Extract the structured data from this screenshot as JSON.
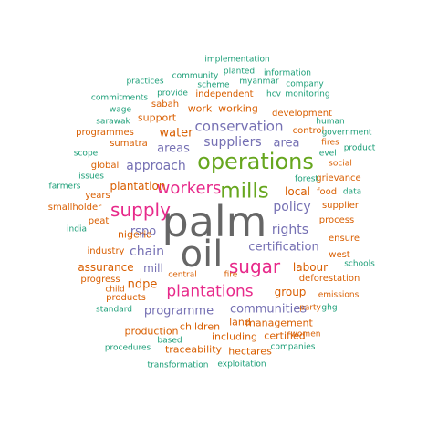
{
  "palette": {
    "darkgray": "#666666",
    "magenta": "#e7298a",
    "green": "#66a61e",
    "purple": "#7570b3",
    "orange": "#d95f02",
    "teal": "#1b9e77"
  },
  "words": [
    {
      "text": "palm",
      "color": "darkgray"
    },
    {
      "text": "oil",
      "color": "darkgray"
    },
    {
      "text": "operations",
      "color": "green"
    },
    {
      "text": "mills",
      "color": "green"
    },
    {
      "text": "sugar",
      "color": "magenta"
    },
    {
      "text": "supply",
      "color": "magenta"
    },
    {
      "text": "workers",
      "color": "magenta"
    },
    {
      "text": "plantations",
      "color": "magenta"
    },
    {
      "text": "conservation",
      "color": "purple"
    },
    {
      "text": "suppliers",
      "color": "purple"
    },
    {
      "text": "area",
      "color": "purple"
    },
    {
      "text": "areas",
      "color": "purple"
    },
    {
      "text": "approach",
      "color": "purple"
    },
    {
      "text": "water",
      "color": "orange"
    },
    {
      "text": "policy",
      "color": "purple"
    },
    {
      "text": "rights",
      "color": "purple"
    },
    {
      "text": "local",
      "color": "orange"
    },
    {
      "text": "certification",
      "color": "purple"
    },
    {
      "text": "chain",
      "color": "purple"
    },
    {
      "text": "rspo",
      "color": "purple"
    },
    {
      "text": "mill",
      "color": "purple"
    },
    {
      "text": "ndpe",
      "color": "orange"
    },
    {
      "text": "programme",
      "color": "purple"
    },
    {
      "text": "communities",
      "color": "purple"
    },
    {
      "text": "labour",
      "color": "orange"
    },
    {
      "text": "group",
      "color": "orange"
    },
    {
      "text": "plantation",
      "color": "orange"
    },
    {
      "text": "nigeria",
      "color": "orange"
    },
    {
      "text": "assurance",
      "color": "orange"
    },
    {
      "text": "work",
      "color": "orange"
    },
    {
      "text": "working",
      "color": "orange"
    },
    {
      "text": "support",
      "color": "orange"
    },
    {
      "text": "children",
      "color": "orange"
    },
    {
      "text": "land",
      "color": "orange"
    },
    {
      "text": "management",
      "color": "orange"
    },
    {
      "text": "including",
      "color": "orange"
    },
    {
      "text": "certified",
      "color": "orange"
    },
    {
      "text": "production",
      "color": "orange"
    },
    {
      "text": "traceability",
      "color": "orange"
    },
    {
      "text": "hectares",
      "color": "orange"
    },
    {
      "text": "food",
      "color": "orange"
    },
    {
      "text": "supplier",
      "color": "orange"
    },
    {
      "text": "process",
      "color": "orange"
    },
    {
      "text": "ensure",
      "color": "orange"
    },
    {
      "text": "west",
      "color": "orange"
    },
    {
      "text": "grievance",
      "color": "orange"
    },
    {
      "text": "deforestation",
      "color": "orange"
    },
    {
      "text": "development",
      "color": "orange"
    },
    {
      "text": "independent",
      "color": "orange"
    },
    {
      "text": "sumatra",
      "color": "orange"
    },
    {
      "text": "global",
      "color": "orange"
    },
    {
      "text": "sabah",
      "color": "orange"
    },
    {
      "text": "progress",
      "color": "orange"
    },
    {
      "text": "products",
      "color": "orange"
    },
    {
      "text": "industry",
      "color": "orange"
    },
    {
      "text": "peat",
      "color": "orange"
    },
    {
      "text": "smallholder",
      "color": "orange"
    },
    {
      "text": "years",
      "color": "orange"
    },
    {
      "text": "programmes",
      "color": "orange"
    },
    {
      "text": "control",
      "color": "orange"
    },
    {
      "text": "fire",
      "color": "orange"
    },
    {
      "text": "central",
      "color": "orange"
    },
    {
      "text": "child",
      "color": "orange"
    },
    {
      "text": "emissions",
      "color": "orange"
    },
    {
      "text": "party",
      "color": "orange"
    },
    {
      "text": "women",
      "color": "orange"
    },
    {
      "text": "fires",
      "color": "orange"
    },
    {
      "text": "social",
      "color": "orange"
    },
    {
      "text": "implementation",
      "color": "teal"
    },
    {
      "text": "planted",
      "color": "teal"
    },
    {
      "text": "community",
      "color": "teal"
    },
    {
      "text": "information",
      "color": "teal"
    },
    {
      "text": "practices",
      "color": "teal"
    },
    {
      "text": "scheme",
      "color": "teal"
    },
    {
      "text": "myanmar",
      "color": "teal"
    },
    {
      "text": "company",
      "color": "teal"
    },
    {
      "text": "provide",
      "color": "teal"
    },
    {
      "text": "hcv",
      "color": "teal"
    },
    {
      "text": "monitoring",
      "color": "teal"
    },
    {
      "text": "commitments",
      "color": "teal"
    },
    {
      "text": "wage",
      "color": "teal"
    },
    {
      "text": "sarawak",
      "color": "teal"
    },
    {
      "text": "human",
      "color": "teal"
    },
    {
      "text": "government",
      "color": "teal"
    },
    {
      "text": "level",
      "color": "teal"
    },
    {
      "text": "product",
      "color": "teal"
    },
    {
      "text": "scope",
      "color": "teal"
    },
    {
      "text": "issues",
      "color": "teal"
    },
    {
      "text": "farmers",
      "color": "teal"
    },
    {
      "text": "forest",
      "color": "teal"
    },
    {
      "text": "data",
      "color": "teal"
    },
    {
      "text": "india",
      "color": "teal"
    },
    {
      "text": "schools",
      "color": "teal"
    },
    {
      "text": "standard",
      "color": "teal"
    },
    {
      "text": "ghg",
      "color": "teal"
    },
    {
      "text": "procedures",
      "color": "teal"
    },
    {
      "text": "based",
      "color": "teal"
    },
    {
      "text": "companies",
      "color": "teal"
    },
    {
      "text": "transformation",
      "color": "teal"
    },
    {
      "text": "exploitation",
      "color": "teal"
    }
  ]
}
